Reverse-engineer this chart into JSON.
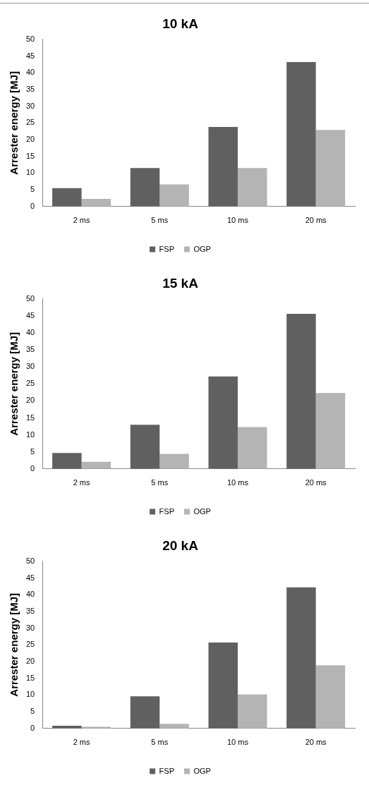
{
  "chart_data": [
    {
      "type": "bar",
      "title": "10 kA",
      "ylabel": "Arrester energy [MJ]",
      "categories": [
        "2 ms",
        "5 ms",
        "10 ms",
        "20 ms"
      ],
      "series": [
        {
          "name": "FSP",
          "color": "#606060",
          "values": [
            5.5,
            11.5,
            23.8,
            43.2
          ]
        },
        {
          "name": "OGP",
          "color": "#b4b4b4",
          "values": [
            2.3,
            6.6,
            11.5,
            22.9
          ]
        }
      ],
      "ylim": [
        0,
        50
      ],
      "yticks": [
        0,
        5,
        10,
        15,
        20,
        25,
        30,
        35,
        40,
        45,
        50
      ],
      "grid": false,
      "legend": "bottom"
    },
    {
      "type": "bar",
      "title": "15 kA",
      "ylabel": "Arrester energy [MJ]",
      "categories": [
        "2 ms",
        "5 ms",
        "10 ms",
        "20 ms"
      ],
      "series": [
        {
          "name": "FSP",
          "color": "#606060",
          "values": [
            4.7,
            13.0,
            27.2,
            45.6
          ]
        },
        {
          "name": "OGP",
          "color": "#b4b4b4",
          "values": [
            2.1,
            4.4,
            12.3,
            22.3
          ]
        }
      ],
      "ylim": [
        0,
        50
      ],
      "yticks": [
        0,
        5,
        10,
        15,
        20,
        25,
        30,
        35,
        40,
        45,
        50
      ],
      "grid": false,
      "legend": "bottom"
    },
    {
      "type": "bar",
      "title": "20 kA",
      "ylabel": "Arrester energy [MJ]",
      "categories": [
        "2 ms",
        "5 ms",
        "10 ms",
        "20 ms"
      ],
      "series": [
        {
          "name": "FSP",
          "color": "#606060",
          "values": [
            0.8,
            9.6,
            25.7,
            42.2
          ]
        },
        {
          "name": "OGP",
          "color": "#b4b4b4",
          "values": [
            0.5,
            1.4,
            10.2,
            18.9
          ]
        }
      ],
      "ylim": [
        0,
        50
      ],
      "yticks": [
        0,
        5,
        10,
        15,
        20,
        25,
        30,
        35,
        40,
        45,
        50
      ],
      "grid": false,
      "legend": "bottom"
    }
  ]
}
